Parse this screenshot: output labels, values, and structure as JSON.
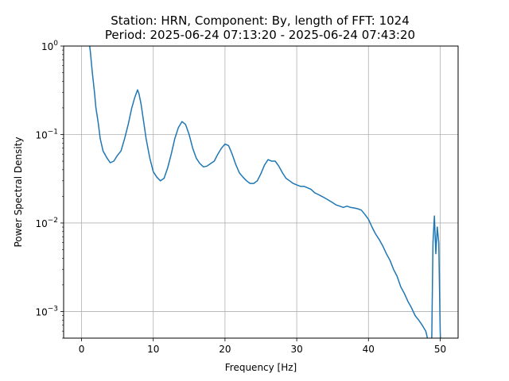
{
  "chart_data": {
    "type": "line",
    "title_line1": "Station: HRN, Component: By, length of FFT: 1024",
    "title_line2": "Period: 2025-06-24 07:13:20 - 2025-06-24 07:43:20",
    "xlabel": "Frequency [Hz]",
    "ylabel": "Power Spectral Density",
    "xlim": [
      -2.5,
      52.5
    ],
    "ylim": [
      0.0005,
      1
    ],
    "yscale": "log",
    "grid": true,
    "x_ticks": [
      {
        "value": 0,
        "label": "0"
      },
      {
        "value": 10,
        "label": "10"
      },
      {
        "value": 20,
        "label": "20"
      },
      {
        "value": 30,
        "label": "30"
      },
      {
        "value": 40,
        "label": "40"
      },
      {
        "value": 50,
        "label": "50"
      }
    ],
    "y_ticks": [
      {
        "value": 0.001,
        "base": "10",
        "exp": "−3"
      },
      {
        "value": 0.01,
        "base": "10",
        "exp": "−2"
      },
      {
        "value": 0.1,
        "base": "10",
        "exp": "−1"
      },
      {
        "value": 1,
        "base": "10",
        "exp": "0"
      }
    ],
    "line_color": "#1f77b4",
    "series": [
      {
        "x": [
          1.0,
          1.2,
          1.5,
          1.8,
          2.0,
          2.3,
          2.6,
          3.0,
          3.5,
          4.0,
          4.5,
          5.0,
          5.5,
          6.0,
          6.5,
          7.0,
          7.4,
          7.8,
          8.0,
          8.3,
          8.6,
          9.0,
          9.5,
          10.0,
          10.5,
          11.0,
          11.5,
          12.0,
          12.5,
          13.0,
          13.5,
          14.0,
          14.5,
          15.0,
          15.5,
          16.0,
          16.5,
          17.0,
          17.5,
          18.0,
          18.5,
          19.0,
          19.5,
          20.0,
          20.5,
          21.0,
          21.5,
          22.0,
          22.5,
          23.0,
          23.5,
          24.0,
          24.5,
          25.0,
          25.5,
          26.0,
          26.5,
          27.0,
          27.5,
          28.0,
          28.5,
          29.0,
          29.5,
          30.0,
          30.5,
          31.0,
          31.5,
          32.0,
          32.5,
          33.0,
          33.5,
          34.0,
          34.5,
          35.0,
          35.5,
          36.0,
          36.5,
          37.0,
          37.5,
          38.0,
          38.5,
          39.0,
          39.5,
          40.0,
          40.5,
          41.0,
          41.5,
          42.0,
          42.5,
          43.0,
          43.5,
          44.0,
          44.5,
          45.0,
          45.5,
          46.0,
          46.5,
          47.0,
          47.5,
          48.0,
          48.5,
          48.8,
          49.0,
          49.2,
          49.4,
          49.6,
          49.8,
          50.0,
          50.2
        ],
        "y": [
          1.2,
          0.9,
          0.5,
          0.3,
          0.2,
          0.14,
          0.09,
          0.065,
          0.055,
          0.048,
          0.05,
          0.058,
          0.065,
          0.09,
          0.13,
          0.2,
          0.26,
          0.32,
          0.29,
          0.22,
          0.15,
          0.09,
          0.055,
          0.038,
          0.033,
          0.03,
          0.032,
          0.042,
          0.06,
          0.09,
          0.12,
          0.14,
          0.13,
          0.1,
          0.07,
          0.054,
          0.047,
          0.043,
          0.044,
          0.047,
          0.05,
          0.06,
          0.07,
          0.078,
          0.075,
          0.06,
          0.046,
          0.037,
          0.033,
          0.03,
          0.028,
          0.028,
          0.03,
          0.036,
          0.045,
          0.052,
          0.05,
          0.05,
          0.044,
          0.037,
          0.032,
          0.03,
          0.028,
          0.027,
          0.026,
          0.026,
          0.025,
          0.024,
          0.022,
          0.021,
          0.02,
          0.019,
          0.018,
          0.017,
          0.016,
          0.0155,
          0.015,
          0.0155,
          0.015,
          0.0148,
          0.0145,
          0.014,
          0.0125,
          0.011,
          0.009,
          0.0075,
          0.0065,
          0.0055,
          0.0045,
          0.0038,
          0.003,
          0.0025,
          0.0019,
          0.0016,
          0.0013,
          0.0011,
          0.0009,
          0.0008,
          0.0007,
          0.0006,
          0.0004,
          0.0003,
          0.006,
          0.012,
          0.0045,
          0.009,
          0.006,
          0.0006,
          0.0002
        ]
      }
    ]
  }
}
